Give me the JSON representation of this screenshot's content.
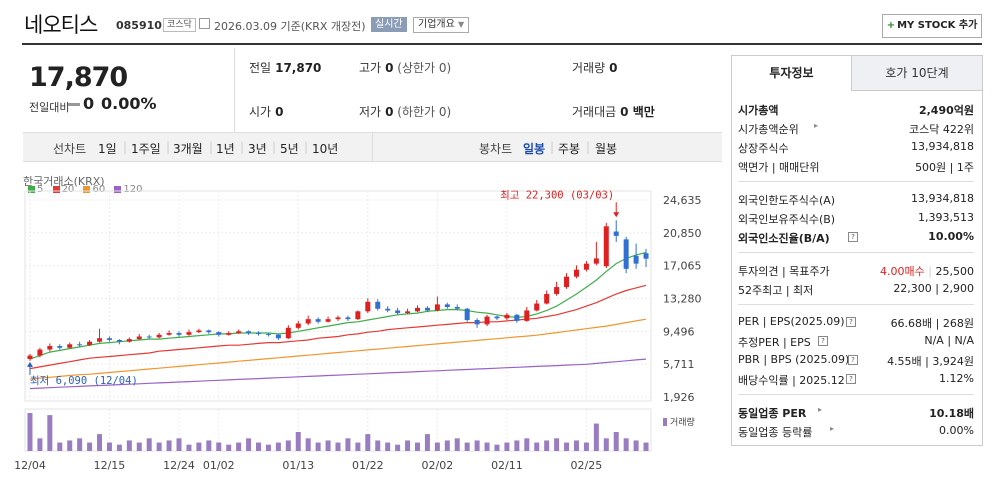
{
  "header": {
    "name": "네오티스",
    "code": "085910",
    "market": "코스닥",
    "date": "2026.03.09 기준(KRX 개장전)",
    "live": "실시간",
    "overview": "기업개요",
    "mystock": "MY STOCK 추가"
  },
  "price": {
    "current": "17,870",
    "change_label": "전일대비",
    "change_value": "0",
    "change_pct": "0.00%"
  },
  "stats": {
    "prev_label": "전일",
    "prev": "17,870",
    "high_label": "고가",
    "high": "0",
    "high_sub": "(상한가 0)",
    "volume_label": "거래량",
    "volume": "0",
    "open_label": "시가",
    "open": "0",
    "low_label": "저가",
    "low": "0",
    "low_sub": "(하한가 0)",
    "amount_label": "거래대금",
    "amount": "0 백만"
  },
  "chart_tabs": {
    "line_label": "선차트",
    "line_items": [
      "1일",
      "1주일",
      "3개월",
      "1년",
      "3년",
      "5년",
      "10년"
    ],
    "candle_label": "봉차트",
    "candle_items": [
      "일봉",
      "주봉",
      "월봉"
    ],
    "candle_selected": "일봉"
  },
  "chart_data": {
    "type": "candlestick",
    "title": "한국거래소(KRX)",
    "legend": [
      {
        "name": "5",
        "color": "#3fae49"
      },
      {
        "name": "20",
        "color": "#e53935"
      },
      {
        "name": "60",
        "color": "#f0962e"
      },
      {
        "name": "120",
        "color": "#9a63c7"
      }
    ],
    "y_ticks": [
      "24,635",
      "20,850",
      "17,065",
      "13,280",
      "9,496",
      "5,711",
      "1,926"
    ],
    "y_range": [
      1926,
      24635
    ],
    "x_ticks": [
      "12/04",
      "12/15",
      "12/24",
      "01/02",
      "01/13",
      "01/22",
      "02/02",
      "02/11",
      "02/25"
    ],
    "x_tick_index": [
      0,
      8,
      15,
      19,
      27,
      34,
      41,
      48,
      56
    ],
    "max_label": "최고 22,300 (03/03)",
    "min_label": "최저 6,090 (12/04)",
    "volume_label": "거래량",
    "up_color": "#e02020",
    "down_color": "#3070d0",
    "candles": [
      {
        "o": 6300,
        "c": 6700,
        "h": 6900,
        "l": 6090
      },
      {
        "o": 6700,
        "c": 7400,
        "h": 7600,
        "l": 6500
      },
      {
        "o": 7400,
        "c": 7800,
        "h": 8100,
        "l": 7200
      },
      {
        "o": 7800,
        "c": 7600,
        "h": 8000,
        "l": 7400
      },
      {
        "o": 7600,
        "c": 8000,
        "h": 8200,
        "l": 7500
      },
      {
        "o": 8000,
        "c": 7900,
        "h": 8300,
        "l": 7700
      },
      {
        "o": 7900,
        "c": 8300,
        "h": 8500,
        "l": 7800
      },
      {
        "o": 8300,
        "c": 8700,
        "h": 9800,
        "l": 8200
      },
      {
        "o": 8700,
        "c": 8500,
        "h": 8900,
        "l": 8300
      },
      {
        "o": 8500,
        "c": 8300,
        "h": 8600,
        "l": 8000
      },
      {
        "o": 8300,
        "c": 8600,
        "h": 8800,
        "l": 8200
      },
      {
        "o": 8600,
        "c": 8900,
        "h": 9200,
        "l": 8500
      },
      {
        "o": 8900,
        "c": 8800,
        "h": 9100,
        "l": 8600
      },
      {
        "o": 8800,
        "c": 9100,
        "h": 9300,
        "l": 8700
      },
      {
        "o": 9100,
        "c": 9300,
        "h": 9600,
        "l": 9000
      },
      {
        "o": 9300,
        "c": 9100,
        "h": 9500,
        "l": 8900
      },
      {
        "o": 9100,
        "c": 9400,
        "h": 9700,
        "l": 9000
      },
      {
        "o": 9400,
        "c": 9600,
        "h": 9800,
        "l": 9300
      },
      {
        "o": 9600,
        "c": 9400,
        "h": 9700,
        "l": 9200
      },
      {
        "o": 9400,
        "c": 9100,
        "h": 9500,
        "l": 8900
      },
      {
        "o": 9100,
        "c": 9300,
        "h": 9500,
        "l": 9000
      },
      {
        "o": 9300,
        "c": 9500,
        "h": 9700,
        "l": 9200
      },
      {
        "o": 9500,
        "c": 9300,
        "h": 9600,
        "l": 9100
      },
      {
        "o": 9300,
        "c": 9200,
        "h": 9500,
        "l": 9000
      },
      {
        "o": 9200,
        "c": 9100,
        "h": 9300,
        "l": 8900
      },
      {
        "o": 9100,
        "c": 8700,
        "h": 9200,
        "l": 8500
      },
      {
        "o": 8700,
        "c": 9900,
        "h": 10200,
        "l": 8600
      },
      {
        "o": 9900,
        "c": 10400,
        "h": 10700,
        "l": 9700
      },
      {
        "o": 10400,
        "c": 10900,
        "h": 11300,
        "l": 10200
      },
      {
        "o": 10900,
        "c": 10600,
        "h": 11100,
        "l": 10400
      },
      {
        "o": 10600,
        "c": 10900,
        "h": 11200,
        "l": 10500
      },
      {
        "o": 10900,
        "c": 11100,
        "h": 11300,
        "l": 10700
      },
      {
        "o": 11100,
        "c": 10900,
        "h": 11300,
        "l": 10700
      },
      {
        "o": 10900,
        "c": 11800,
        "h": 11900,
        "l": 10800
      },
      {
        "o": 11800,
        "c": 12900,
        "h": 13300,
        "l": 11600
      },
      {
        "o": 12900,
        "c": 12100,
        "h": 13200,
        "l": 11900
      },
      {
        "o": 12100,
        "c": 11900,
        "h": 12400,
        "l": 11700
      },
      {
        "o": 11900,
        "c": 11600,
        "h": 12200,
        "l": 11400
      },
      {
        "o": 11600,
        "c": 11800,
        "h": 12100,
        "l": 11500
      },
      {
        "o": 11800,
        "c": 12200,
        "h": 12500,
        "l": 11700
      },
      {
        "o": 12200,
        "c": 11900,
        "h": 12400,
        "l": 11700
      },
      {
        "o": 11900,
        "c": 12600,
        "h": 13500,
        "l": 11800
      },
      {
        "o": 12600,
        "c": 12300,
        "h": 12800,
        "l": 12100
      },
      {
        "o": 12300,
        "c": 12100,
        "h": 12600,
        "l": 11900
      },
      {
        "o": 12100,
        "c": 10800,
        "h": 12200,
        "l": 10600
      },
      {
        "o": 10800,
        "c": 10300,
        "h": 11000,
        "l": 9900
      },
      {
        "o": 10300,
        "c": 11200,
        "h": 11400,
        "l": 10100
      },
      {
        "o": 11200,
        "c": 11000,
        "h": 11300,
        "l": 10800
      },
      {
        "o": 11000,
        "c": 11400,
        "h": 11600,
        "l": 10800
      },
      {
        "o": 11400,
        "c": 10700,
        "h": 11500,
        "l": 10500
      },
      {
        "o": 10700,
        "c": 11900,
        "h": 12300,
        "l": 10600
      },
      {
        "o": 11900,
        "c": 12700,
        "h": 13100,
        "l": 11800
      },
      {
        "o": 12700,
        "c": 13800,
        "h": 14200,
        "l": 12600
      },
      {
        "o": 13800,
        "c": 14600,
        "h": 15200,
        "l": 13600
      },
      {
        "o": 14600,
        "c": 15800,
        "h": 16200,
        "l": 14400
      },
      {
        "o": 15800,
        "c": 16600,
        "h": 17100,
        "l": 15600
      },
      {
        "o": 16600,
        "c": 17300,
        "h": 17600,
        "l": 16400
      },
      {
        "o": 17300,
        "c": 17900,
        "h": 19800,
        "l": 17100
      },
      {
        "o": 17000,
        "c": 21600,
        "h": 22000,
        "l": 16800
      },
      {
        "o": 21000,
        "c": 20500,
        "h": 22300,
        "l": 19800
      },
      {
        "o": 20100,
        "c": 16700,
        "h": 20400,
        "l": 16200
      },
      {
        "o": 18200,
        "c": 17300,
        "h": 19600,
        "l": 16700
      },
      {
        "o": 18500,
        "c": 17870,
        "h": 19000,
        "l": 16900
      }
    ],
    "ma5": [
      6300,
      6700,
      7100,
      7300,
      7500,
      7700,
      7900,
      8100,
      8200,
      8300,
      8400,
      8500,
      8600,
      8600,
      8700,
      8800,
      8900,
      9000,
      9100,
      9200,
      9200,
      9300,
      9300,
      9300,
      9300,
      9200,
      9300,
      9500,
      9700,
      9900,
      10100,
      10300,
      10500,
      10600,
      10800,
      11000,
      11200,
      11400,
      11500,
      11600,
      11800,
      11900,
      12000,
      12000,
      11900,
      11700,
      11600,
      11400,
      11200,
      11100,
      11200,
      11500,
      11900,
      12400,
      13100,
      13800,
      14600,
      15400,
      16400,
      17300,
      17900,
      18300,
      18600
    ],
    "ma20": [
      5200,
      5400,
      5600,
      5800,
      6000,
      6200,
      6400,
      6500,
      6600,
      6700,
      6800,
      6900,
      7000,
      7200,
      7300,
      7400,
      7500,
      7600,
      7700,
      7800,
      7900,
      7900,
      8000,
      8100,
      8200,
      8200,
      8300,
      8400,
      8500,
      8700,
      8800,
      8900,
      9100,
      9200,
      9400,
      9500,
      9700,
      9800,
      9900,
      10000,
      10100,
      10200,
      10300,
      10400,
      10500,
      10500,
      10600,
      10600,
      10700,
      10800,
      10900,
      11000,
      11200,
      11400,
      11700,
      12000,
      12400,
      12800,
      13300,
      13800,
      14200,
      14500,
      14800
    ],
    "ma60": [
      4000,
      4100,
      4200,
      4300,
      4400,
      4500,
      4550,
      4650,
      4750,
      4850,
      4950,
      5050,
      5150,
      5250,
      5350,
      5450,
      5550,
      5650,
      5750,
      5850,
      5950,
      6050,
      6150,
      6250,
      6350,
      6450,
      6550,
      6650,
      6750,
      6850,
      6950,
      7050,
      7150,
      7250,
      7350,
      7450,
      7550,
      7650,
      7750,
      7850,
      7950,
      8050,
      8150,
      8250,
      8350,
      8450,
      8550,
      8650,
      8750,
      8850,
      8950,
      9050,
      9200,
      9350,
      9500,
      9650,
      9800,
      9950,
      10100,
      10300,
      10500,
      10700,
      10900
    ],
    "ma120": [
      2900,
      2950,
      3000,
      3050,
      3100,
      3150,
      3200,
      3250,
      3300,
      3350,
      3400,
      3450,
      3500,
      3550,
      3600,
      3650,
      3700,
      3750,
      3800,
      3850,
      3900,
      3950,
      4000,
      4050,
      4100,
      4150,
      4200,
      4250,
      4300,
      4350,
      4400,
      4450,
      4500,
      4550,
      4600,
      4650,
      4700,
      4750,
      4800,
      4850,
      4900,
      4950,
      5000,
      5050,
      5100,
      5150,
      5200,
      5250,
      5300,
      5350,
      5400,
      5450,
      5500,
      5550,
      5600,
      5650,
      5700,
      5800,
      5900,
      6000,
      6100,
      6200,
      6300
    ],
    "volumes": [
      90,
      30,
      85,
      20,
      25,
      30,
      20,
      40,
      20,
      15,
      25,
      20,
      30,
      20,
      25,
      30,
      15,
      20,
      25,
      20,
      15,
      20,
      30,
      20,
      15,
      20,
      25,
      45,
      30,
      20,
      25,
      20,
      30,
      20,
      40,
      25,
      20,
      15,
      25,
      20,
      40,
      20,
      25,
      30,
      20,
      25,
      20,
      15,
      20,
      25,
      30,
      20,
      25,
      30,
      20,
      25,
      20,
      65,
      30,
      45,
      30,
      25,
      20
    ]
  },
  "right_panel": {
    "tab_on": "투자정보",
    "tab_off": "호가 10단계",
    "rows": [
      {
        "l": "시가총액",
        "r": "2,490억원",
        "bold": true
      },
      {
        "l": "시가총액순위",
        "r": "코스닥 422위"
      },
      {
        "l": "상장주식수",
        "r": "13,934,818"
      },
      {
        "l": "액면가 | 매매단위",
        "r": "500원 | 1주"
      },
      {
        "l": "외국인한도주식수(A)",
        "r": "13,934,818"
      },
      {
        "l": "외국인보유주식수(B)",
        "r": "1,393,513"
      },
      {
        "l": "외국인소진율(B/A)",
        "r": "10.00%",
        "bold": true
      },
      {
        "l": "투자의견 | 목표주가",
        "r1": "4.00매수",
        "r2": "25,500"
      },
      {
        "l": "52주최고 | 최저",
        "r": "22,300 | 2,900"
      },
      {
        "l": "PER | EPS(2025.09)",
        "r": "66.68배 | 268원"
      },
      {
        "l": "추정PER | EPS",
        "r": "N/A | N/A"
      },
      {
        "l": "PBR | BPS (2025.09)",
        "r": "4.55배 | 3,924원"
      },
      {
        "l": "배당수익률 | 2025.12",
        "r": "1.12%"
      },
      {
        "l": "동일업종 PER",
        "r": "10.18배",
        "bold": true
      },
      {
        "l": "동일업종 등락률",
        "r": "0.00%"
      }
    ]
  }
}
